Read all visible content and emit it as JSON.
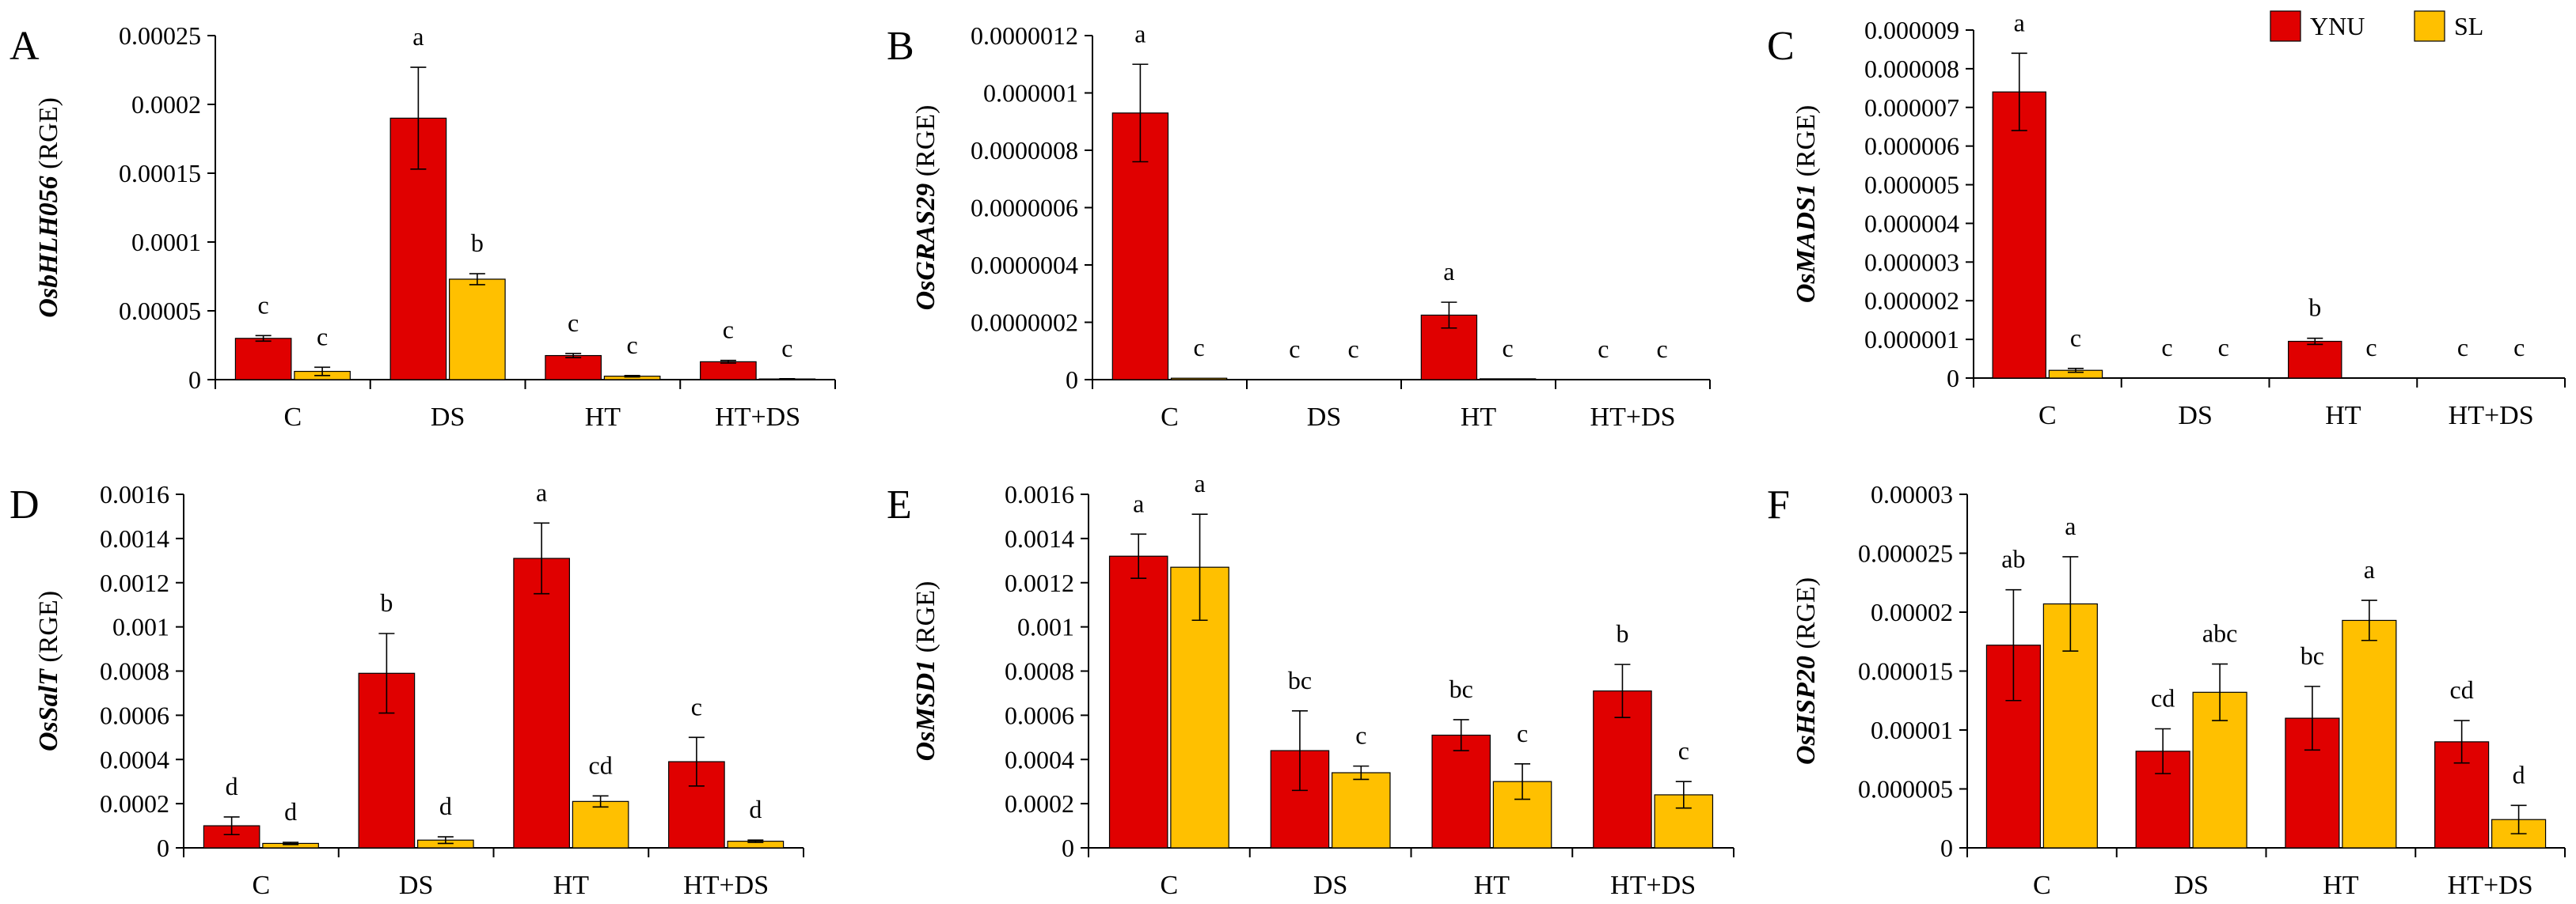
{
  "legend": {
    "entries": [
      {
        "name": "YNU",
        "color": "#e00000"
      },
      {
        "name": "SL",
        "color": "#ffc000"
      }
    ]
  },
  "chart_data": [
    {
      "panel": "A",
      "type": "bar",
      "ylabel_gene": "OsbHLH056",
      "ylabel_unit": "(RGE)",
      "categories": [
        "C",
        "DS",
        "HT",
        "HT+DS"
      ],
      "ylim": [
        0,
        0.00025
      ],
      "yticks": [
        "0",
        "0.00005",
        "0.0001",
        "0.00015",
        "0.0002",
        "0.00025"
      ],
      "series": [
        {
          "name": "YNU",
          "values": [
            3e-05,
            0.00019,
            1.75e-05,
            1.3e-05
          ],
          "errors": [
            2e-06,
            3.7e-05,
            1.5e-06,
            1e-06
          ],
          "letters": [
            "c",
            "a",
            "c",
            "c"
          ]
        },
        {
          "name": "SL",
          "values": [
            6e-06,
            7.3e-05,
            2.5e-06,
            5e-07
          ],
          "errors": [
            3e-06,
            4e-06,
            5e-07,
            2e-07
          ],
          "letters": [
            "c",
            "b",
            "c",
            "c"
          ]
        }
      ]
    },
    {
      "panel": "B",
      "type": "bar",
      "ylabel_gene": "OsGRAS29",
      "ylabel_unit": "(RGE)",
      "categories": [
        "C",
        "DS",
        "HT",
        "HT+DS"
      ],
      "ylim": [
        0,
        1.2e-06
      ],
      "yticks": [
        "0",
        "0.0000002",
        "0.0000004",
        "0.0000006",
        "0.0000008",
        "0.000001",
        "0.0000012"
      ],
      "series": [
        {
          "name": "YNU",
          "values": [
            9.3e-07,
            0.0,
            2.25e-07,
            0.0
          ],
          "errors": [
            1.7e-07,
            0.0,
            4.5e-08,
            0.0
          ],
          "letters": [
            "a",
            "c",
            "a",
            "c"
          ]
        },
        {
          "name": "SL",
          "values": [
            5e-09,
            0.0,
            3e-09,
            0.0
          ],
          "errors": [
            0.0,
            0.0,
            0.0,
            0.0
          ],
          "letters": [
            "c",
            "c",
            "c",
            "c"
          ]
        }
      ]
    },
    {
      "panel": "C",
      "type": "bar",
      "ylabel_gene": "OsMADS1",
      "ylabel_unit": "(RGE)",
      "categories": [
        "C",
        "DS",
        "HT",
        "HT+DS"
      ],
      "ylim": [
        0,
        9e-06
      ],
      "yticks": [
        "0",
        "0.000001",
        "0.000002",
        "0.000003",
        "0.000004",
        "0.000005",
        "0.000006",
        "0.000007",
        "0.000008",
        "0.000009"
      ],
      "series": [
        {
          "name": "YNU",
          "values": [
            7.4e-06,
            0.0,
            9.5e-07,
            0.0
          ],
          "errors": [
            1e-06,
            0.0,
            8e-08,
            0.0
          ],
          "letters": [
            "a",
            "c",
            "b",
            "c"
          ]
        },
        {
          "name": "SL",
          "values": [
            2e-07,
            0.0,
            0.0,
            0.0
          ],
          "errors": [
            5e-08,
            0.0,
            0.0,
            0.0
          ],
          "letters": [
            "c",
            "c",
            "c",
            "c"
          ]
        }
      ]
    },
    {
      "panel": "D",
      "type": "bar",
      "ylabel_gene": "OsSalT",
      "ylabel_unit": "(RGE)",
      "categories": [
        "C",
        "DS",
        "HT",
        "HT+DS"
      ],
      "ylim": [
        0,
        0.0016
      ],
      "yticks": [
        "0",
        "0.0002",
        "0.0004",
        "0.0006",
        "0.0008",
        "0.001",
        "0.0012",
        "0.0014",
        "0.0016"
      ],
      "series": [
        {
          "name": "YNU",
          "values": [
            0.0001,
            0.00079,
            0.00131,
            0.00039
          ],
          "errors": [
            4e-05,
            0.00018,
            0.00016,
            0.00011
          ],
          "letters": [
            "d",
            "b",
            "a",
            "c"
          ]
        },
        {
          "name": "SL",
          "values": [
            2e-05,
            3.5e-05,
            0.00021,
            3e-05
          ],
          "errors": [
            5e-06,
            1.5e-05,
            2.5e-05,
            5e-06
          ],
          "letters": [
            "d",
            "d",
            "cd",
            "d"
          ]
        }
      ]
    },
    {
      "panel": "E",
      "type": "bar",
      "ylabel_gene": "OsMSD1",
      "ylabel_unit": "(RGE)",
      "categories": [
        "C",
        "DS",
        "HT",
        "HT+DS"
      ],
      "ylim": [
        0,
        0.0016
      ],
      "yticks": [
        "0",
        "0.0002",
        "0.0004",
        "0.0006",
        "0.0008",
        "0.001",
        "0.0012",
        "0.0014",
        "0.0016"
      ],
      "series": [
        {
          "name": "YNU",
          "values": [
            0.00132,
            0.00044,
            0.00051,
            0.00071
          ],
          "errors": [
            0.0001,
            0.00018,
            7e-05,
            0.00012
          ],
          "letters": [
            "a",
            "bc",
            "bc",
            "b"
          ]
        },
        {
          "name": "SL",
          "values": [
            0.00127,
            0.00034,
            0.0003,
            0.00024
          ],
          "errors": [
            0.00024,
            3e-05,
            8e-05,
            6e-05
          ],
          "letters": [
            "a",
            "c",
            "c",
            "c"
          ]
        }
      ]
    },
    {
      "panel": "F",
      "type": "bar",
      "ylabel_gene": "OsHSP20",
      "ylabel_unit": "(RGE)",
      "categories": [
        "C",
        "DS",
        "HT",
        "HT+DS"
      ],
      "ylim": [
        0,
        3e-05
      ],
      "yticks": [
        "0",
        "0.000005",
        "0.00001",
        "0.000015",
        "0.00002",
        "0.000025",
        "0.00003"
      ],
      "series": [
        {
          "name": "YNU",
          "values": [
            1.72e-05,
            8.2e-06,
            1.1e-05,
            9e-06
          ],
          "errors": [
            4.7e-06,
            1.9e-06,
            2.7e-06,
            1.8e-06
          ],
          "letters": [
            "ab",
            "cd",
            "bc",
            "cd"
          ]
        },
        {
          "name": "SL",
          "values": [
            2.07e-05,
            1.32e-05,
            1.93e-05,
            2.4e-06
          ],
          "errors": [
            4e-06,
            2.4e-06,
            1.7e-06,
            1.2e-06
          ],
          "letters": [
            "a",
            "abc",
            "a",
            "d"
          ]
        }
      ]
    }
  ]
}
